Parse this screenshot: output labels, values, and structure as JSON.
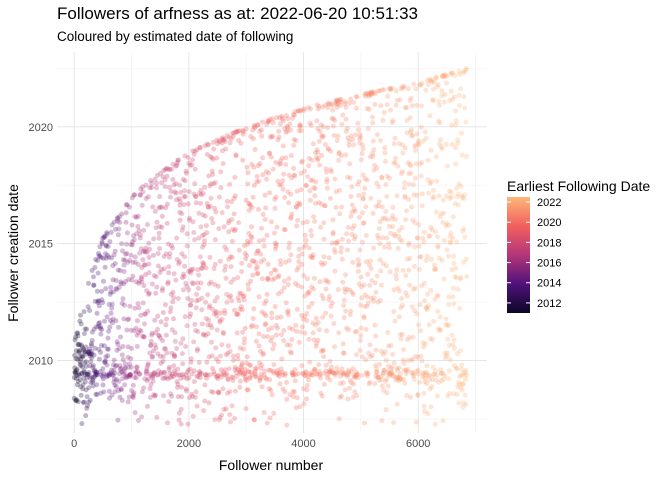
{
  "chart_data": {
    "type": "scatter",
    "title": "Followers of arfness as at: 2022-06-20 10:51:33",
    "subtitle": "Coloured by estimated date of following",
    "xlabel": "Follower number",
    "ylabel": "Follower creation date",
    "xlim": [
      -300,
      7200
    ],
    "ylim": [
      2006.9,
      2023.2
    ],
    "x_ticks": [
      0,
      2000,
      4000,
      6000
    ],
    "x_tick_labels": [
      "0",
      "2000",
      "4000",
      "6000"
    ],
    "y_ticks": [
      2010,
      2015,
      2020
    ],
    "y_tick_labels": [
      "2010",
      "2015",
      "2020"
    ],
    "grid": true,
    "point_alpha": 0.3,
    "n_points": 6850,
    "x_range": [
      1,
      6850
    ],
    "y_range": [
      2007.2,
      2022.5
    ],
    "upper_frontier": [
      [
        0,
        2010.8
      ],
      [
        200,
        2013.0
      ],
      [
        500,
        2015.3
      ],
      [
        1000,
        2017.0
      ],
      [
        1200,
        2017.5
      ],
      [
        2000,
        2018.9
      ],
      [
        3000,
        2020.0
      ],
      [
        4000,
        2020.8
      ],
      [
        5000,
        2021.4
      ],
      [
        6000,
        2021.9
      ],
      [
        6850,
        2022.5
      ]
    ],
    "dense_band_y": 2009.4,
    "legend": {
      "title": "Earliest Following Date",
      "placement": "right",
      "ticks": [
        "2012",
        "2014",
        "2016",
        "2018",
        "2020",
        "2022"
      ],
      "range": [
        2011.0,
        2022.5
      ],
      "colors": [
        "#000004",
        "#3b0f70",
        "#8c2981",
        "#de4968",
        "#fe9f6d",
        "#fcfdbf"
      ]
    }
  }
}
